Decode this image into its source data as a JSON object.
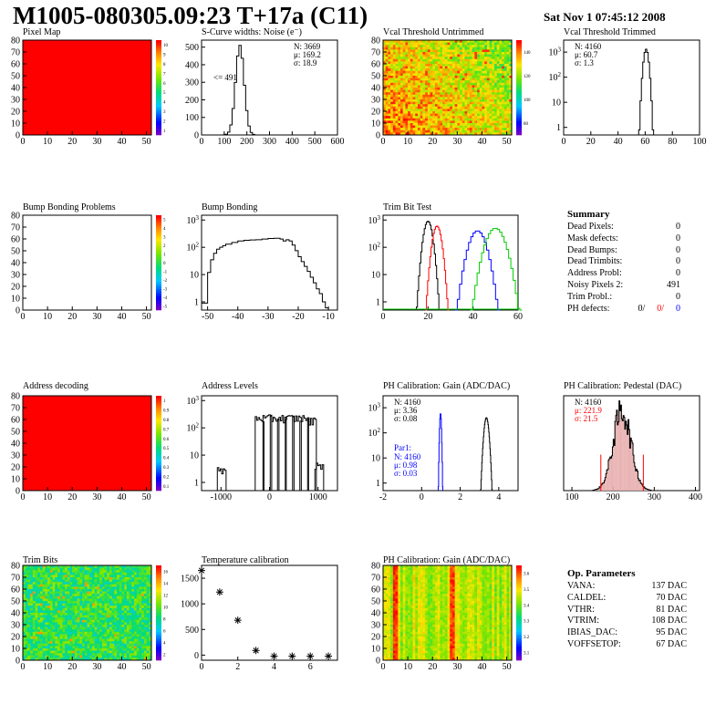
{
  "header": {
    "title": "M1005-080305.09:23 T+17a (C11)",
    "date": "Sat Nov  1 07:45:12 2008"
  },
  "colors": {
    "red_fill": "#ff0000",
    "blue": "#0000ff",
    "red": "#ff0000",
    "green": "#00cc00",
    "black": "#000000"
  },
  "chart_data": [
    {
      "id": "pixel-map",
      "type": "heatmap",
      "title": "Pixel Map",
      "xlim": [
        0,
        52
      ],
      "ylim": [
        0,
        80
      ],
      "xticks": [
        0,
        10,
        20,
        30,
        40,
        50
      ],
      "yticks": [
        0,
        10,
        20,
        30,
        40,
        50,
        60,
        70,
        80
      ],
      "fill": "uniform-red",
      "zlim": [
        0,
        10
      ],
      "zticks": [
        1,
        2,
        3,
        4,
        5,
        6,
        7,
        8,
        9,
        10
      ]
    },
    {
      "id": "scurve-noise",
      "type": "histogram",
      "title": "S-Curve widths: Noise (e⁻)",
      "xlim": [
        0,
        600
      ],
      "ylim": [
        0,
        540
      ],
      "xticks": [
        0,
        100,
        200,
        300,
        400,
        500,
        600
      ],
      "yticks": [
        0,
        100,
        200,
        300,
        400,
        500
      ],
      "stats": [
        "N: 3669",
        "μ: 169.2",
        "σ: 18.9"
      ],
      "annotation": "<= 491",
      "gaussian": {
        "mean": 169.2,
        "sigma": 18.9,
        "peak": 510,
        "bin": 10
      }
    },
    {
      "id": "vcal-untrimmed",
      "type": "heatmap",
      "title": "Vcal Threshold Untrimmed",
      "xlim": [
        0,
        52
      ],
      "ylim": [
        0,
        80
      ],
      "xticks": [
        0,
        10,
        20,
        30,
        40,
        50
      ],
      "yticks": [
        0,
        10,
        20,
        30,
        40,
        50,
        60,
        70,
        80
      ],
      "fill": "noise-orange",
      "zticks": [
        80,
        100,
        120,
        140
      ]
    },
    {
      "id": "vcal-trimmed",
      "type": "histogram",
      "title": "Vcal Threshold Trimmed",
      "log": true,
      "xlim": [
        0,
        100
      ],
      "ylim": [
        0.5,
        3000
      ],
      "xticks": [
        0,
        20,
        40,
        60,
        80,
        100
      ],
      "yticks": [
        1,
        10,
        100,
        1000
      ],
      "stats": [
        "N: 4160",
        "μ: 60.7",
        "σ:  1.3"
      ],
      "gaussian": {
        "mean": 60.7,
        "sigma": 1.3,
        "peak": 1300,
        "bin": 1
      }
    },
    {
      "id": "bump-problems",
      "type": "heatmap",
      "title": "Bump Bonding Problems",
      "xlim": [
        0,
        52
      ],
      "ylim": [
        0,
        80
      ],
      "xticks": [
        0,
        10,
        20,
        30,
        40,
        50
      ],
      "yticks": [
        0,
        10,
        20,
        30,
        40,
        50,
        60,
        70,
        80
      ],
      "fill": "empty",
      "zticks": [
        -5,
        -4,
        -3,
        -2,
        -1,
        0,
        1,
        2,
        3,
        4,
        5
      ]
    },
    {
      "id": "bump-bonding",
      "type": "histogram",
      "title": "Bump Bonding",
      "log": true,
      "xlim": [
        -52,
        -7
      ],
      "ylim": [
        0.5,
        1500
      ],
      "xticks": [
        -50,
        -40,
        -30,
        -20,
        -10
      ],
      "yticks": [
        1,
        10,
        100,
        1000
      ],
      "bins": [
        [
          -52,
          0.9
        ],
        [
          -50,
          12
        ],
        [
          -49,
          35
        ],
        [
          -48,
          60
        ],
        [
          -47,
          85
        ],
        [
          -46,
          100
        ],
        [
          -45,
          115
        ],
        [
          -44,
          130
        ],
        [
          -42,
          150
        ],
        [
          -40,
          170
        ],
        [
          -38,
          180
        ],
        [
          -36,
          185
        ],
        [
          -34,
          190
        ],
        [
          -32,
          200
        ],
        [
          -30,
          210
        ],
        [
          -28,
          215
        ],
        [
          -26,
          200
        ],
        [
          -25,
          170
        ],
        [
          -24,
          190
        ],
        [
          -23,
          170
        ],
        [
          -22,
          120
        ],
        [
          -21,
          75
        ],
        [
          -20,
          45
        ],
        [
          -19,
          30
        ],
        [
          -18,
          20
        ],
        [
          -17,
          13
        ],
        [
          -16,
          8
        ],
        [
          -15,
          5
        ],
        [
          -14,
          3
        ],
        [
          -13,
          2
        ],
        [
          -12,
          1
        ],
        [
          -11,
          0.6
        ]
      ]
    },
    {
      "id": "trim-bit-test",
      "type": "histogram",
      "title": "Trim Bit Test",
      "log": true,
      "xlim": [
        0,
        60
      ],
      "ylim": [
        0.5,
        1500
      ],
      "xticks": [
        0,
        20,
        40,
        60
      ],
      "yticks": [
        1,
        10,
        100,
        1000
      ],
      "series": [
        {
          "color": "#000000",
          "mean": 20,
          "sigma": 1.3,
          "peak": 900
        },
        {
          "color": "#ff0000",
          "mean": 24,
          "sigma": 1.3,
          "peak": 600
        },
        {
          "color": "#0000ff",
          "mean": 42,
          "sigma": 2.5,
          "peak": 400
        },
        {
          "color": "#00cc00",
          "mean": 50,
          "sigma": 2.8,
          "peak": 500
        }
      ]
    },
    {
      "id": "address-decoding",
      "type": "heatmap",
      "title": "Address decoding",
      "xlim": [
        0,
        52
      ],
      "ylim": [
        0,
        80
      ],
      "xticks": [
        0,
        10,
        20,
        30,
        40,
        50
      ],
      "yticks": [
        0,
        10,
        20,
        30,
        40,
        50,
        60,
        70,
        80
      ],
      "fill": "uniform-red",
      "zticks": [
        0.1,
        0.2,
        0.3,
        0.4,
        0.5,
        0.6,
        0.7,
        0.8,
        0.9,
        1
      ]
    },
    {
      "id": "address-levels",
      "type": "histogram",
      "title": "Address Levels",
      "log": true,
      "xlim": [
        -1400,
        1400
      ],
      "ylim": [
        0.5,
        1500
      ],
      "xticks": [
        -1000,
        0,
        1000
      ],
      "yticks": [
        1,
        10,
        100,
        1000
      ],
      "spikes": [
        {
          "x": -1000,
          "h": 3
        },
        {
          "x": -220,
          "h": 250
        },
        {
          "x": -60,
          "h": 250
        },
        {
          "x": 90,
          "h": 250
        },
        {
          "x": 240,
          "h": 250
        },
        {
          "x": 400,
          "h": 250
        },
        {
          "x": 550,
          "h": 250
        },
        {
          "x": 700,
          "h": 250
        },
        {
          "x": 860,
          "h": 200
        },
        {
          "x": 1010,
          "h": 5
        }
      ]
    },
    {
      "id": "ph-gain",
      "type": "histogram",
      "title": "PH Calibration: Gain (ADC/DAC)",
      "log": true,
      "xlim": [
        -2,
        5
      ],
      "ylim": [
        0.5,
        3000
      ],
      "xticks": [
        -2,
        0,
        2,
        4
      ],
      "yticks": [
        1,
        10,
        100,
        1000
      ],
      "stats": [
        "N: 4160",
        "μ: 3.36",
        "σ: 0.08"
      ],
      "stats2_label": "Par1:",
      "stats2": [
        "N: 4160",
        "μ: 0.98",
        "σ: 0.03"
      ],
      "series": [
        {
          "color": "#000000",
          "mean": 3.36,
          "sigma": 0.08,
          "peak": 400
        },
        {
          "color": "#0000ff",
          "mean": 0.98,
          "sigma": 0.03,
          "peak": 600
        }
      ]
    },
    {
      "id": "ph-pedestal",
      "type": "histogram",
      "title": "PH Calibration: Pedestal (DAC)",
      "xlim": [
        80,
        410
      ],
      "ylim": [
        0,
        145
      ],
      "xticks": [
        100,
        200,
        300,
        400
      ],
      "stats": [
        "N: 4160",
        "μ: 221.9",
        "σ: 21.5"
      ],
      "gaussian": {
        "mean": 221.9,
        "sigma": 21.5,
        "peak": 122,
        "bin": 2
      }
    },
    {
      "id": "trim-bits",
      "type": "heatmap",
      "title": "Trim Bits",
      "xlim": [
        0,
        52
      ],
      "ylim": [
        0,
        80
      ],
      "xticks": [
        0,
        10,
        20,
        30,
        40,
        50
      ],
      "yticks": [
        0,
        10,
        20,
        30,
        40,
        50,
        60,
        70,
        80
      ],
      "fill": "noise-green",
      "zticks": [
        2,
        4,
        6,
        8,
        10,
        12,
        14,
        16
      ]
    },
    {
      "id": "temperature",
      "type": "scatter",
      "title": "Temperature calibration",
      "xlim": [
        0,
        7.5
      ],
      "ylim": [
        -100,
        1750
      ],
      "xticks": [
        0,
        2,
        4,
        6
      ],
      "yticks": [
        0,
        500,
        1000,
        1500
      ],
      "x": [
        0,
        1,
        2,
        3,
        4,
        5,
        6,
        7
      ],
      "y": [
        1650,
        1230,
        680,
        90,
        -20,
        -20,
        -20,
        -20
      ]
    },
    {
      "id": "ph-gain-map",
      "type": "heatmap",
      "title": "PH Calibration: Gain (ADC/DAC)",
      "xlim": [
        0,
        52
      ],
      "ylim": [
        0,
        80
      ],
      "xticks": [
        0,
        10,
        20,
        30,
        40,
        50
      ],
      "yticks": [
        0,
        10,
        20,
        30,
        40,
        50,
        60,
        70,
        80
      ],
      "fill": "column-bands",
      "zticks": [
        3.1,
        3.2,
        3.3,
        3.4,
        3.5,
        3.6
      ]
    }
  ],
  "summary": {
    "heading": "Summary",
    "rows": [
      {
        "label": "Dead Pixels:",
        "value": "0"
      },
      {
        "label": "Mask defects:",
        "value": "0"
      },
      {
        "label": "Dead Bumps:",
        "value": "0"
      },
      {
        "label": "Dead Trimbits:",
        "value": "0"
      },
      {
        "label": "Address Probl:",
        "value": "0"
      },
      {
        "label": "Noisy Pixels 2:",
        "value": "491"
      },
      {
        "label": "Trim Probl.:",
        "value": "0"
      }
    ],
    "ph_label": "PH defects:",
    "ph_values": [
      "0/",
      "0/",
      "0"
    ]
  },
  "op_params": {
    "heading": "Op. Parameters",
    "rows": [
      {
        "label": "VANA:",
        "value": "137 DAC"
      },
      {
        "label": "CALDEL:",
        "value": "70 DAC"
      },
      {
        "label": "VTHR:",
        "value": "81 DAC"
      },
      {
        "label": "VTRIM:",
        "value": "108 DAC"
      },
      {
        "label": "IBIAS_DAC:",
        "value": "95 DAC"
      },
      {
        "label": "VOFFSETOP:",
        "value": "67 DAC"
      }
    ]
  }
}
